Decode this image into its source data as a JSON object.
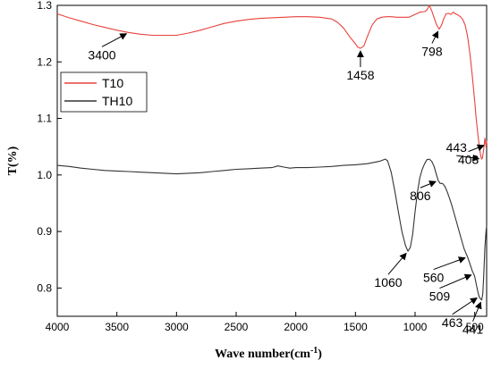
{
  "chart_data": {
    "type": "line",
    "xlabel": "Wave number(cm",
    "xlabel_sup": "-1",
    "xlabel_tail": ")",
    "ylabel": "T(%)",
    "xlim": [
      4000,
      400
    ],
    "ylim": [
      0.75,
      1.3
    ],
    "x_reversed": true,
    "grid": false,
    "legend_position": "middle-left",
    "xticks": [
      4000,
      3500,
      3000,
      2500,
      2000,
      1500,
      1000,
      500
    ],
    "yticks": [
      0.8,
      0.9,
      1.0,
      1.1,
      1.2,
      1.3
    ],
    "xtick_labels": [
      "4000",
      "3500",
      "3000",
      "2500",
      "2000",
      "1500",
      "1000",
      "500"
    ],
    "ytick_labels": [
      "0.8",
      "0.9",
      "1.0",
      "1.1",
      "1.2",
      "1.3"
    ],
    "series": [
      {
        "name": "T10",
        "color": "#e8413c",
        "x": [
          4000,
          3900,
          3800,
          3700,
          3600,
          3500,
          3400,
          3300,
          3200,
          3100,
          3000,
          2900,
          2800,
          2700,
          2600,
          2500,
          2400,
          2300,
          2200,
          2100,
          2000,
          1900,
          1800,
          1700,
          1650,
          1600,
          1550,
          1500,
          1480,
          1458,
          1430,
          1400,
          1360,
          1320,
          1280,
          1240,
          1200,
          1150,
          1100,
          1050,
          1000,
          960,
          920,
          900,
          880,
          860,
          840,
          820,
          798,
          780,
          760,
          740,
          720,
          700,
          680,
          660,
          640,
          620,
          600,
          580,
          560,
          540,
          520,
          500,
          490,
          480,
          470,
          460,
          450,
          443,
          435,
          425,
          415,
          405,
          400
        ],
        "y": [
          1.285,
          1.278,
          1.272,
          1.266,
          1.261,
          1.256,
          1.252,
          1.249,
          1.247,
          1.247,
          1.247,
          1.251,
          1.256,
          1.262,
          1.268,
          1.272,
          1.275,
          1.277,
          1.278,
          1.279,
          1.28,
          1.28,
          1.279,
          1.276,
          1.27,
          1.26,
          1.245,
          1.232,
          1.226,
          1.224,
          1.228,
          1.245,
          1.265,
          1.276,
          1.279,
          1.28,
          1.28,
          1.279,
          1.279,
          1.279,
          1.284,
          1.288,
          1.289,
          1.292,
          1.3,
          1.29,
          1.278,
          1.266,
          1.258,
          1.264,
          1.276,
          1.285,
          1.286,
          1.284,
          1.288,
          1.285,
          1.283,
          1.28,
          1.275,
          1.265,
          1.245,
          1.215,
          1.175,
          1.13,
          1.105,
          1.085,
          1.065,
          1.048,
          1.035,
          1.028,
          1.03,
          1.045,
          1.065,
          1.05,
          1.06
        ]
      },
      {
        "name": "TH10",
        "color": "#333333",
        "x": [
          4000,
          3900,
          3800,
          3700,
          3600,
          3500,
          3400,
          3300,
          3200,
          3100,
          3000,
          2900,
          2800,
          2700,
          2600,
          2500,
          2400,
          2300,
          2200,
          2150,
          2100,
          2050,
          2000,
          1900,
          1800,
          1700,
          1600,
          1500,
          1400,
          1300,
          1250,
          1230,
          1200,
          1170,
          1140,
          1110,
          1080,
          1060,
          1040,
          1020,
          1000,
          980,
          960,
          940,
          920,
          900,
          880,
          860,
          840,
          820,
          806,
          790,
          770,
          750,
          730,
          710,
          690,
          670,
          650,
          630,
          610,
          590,
          570,
          560,
          540,
          520,
          509,
          500,
          490,
          480,
          470,
          463,
          455,
          448,
          441,
          432,
          425,
          415,
          405,
          400
        ],
        "y": [
          1.017,
          1.015,
          1.012,
          1.01,
          1.008,
          1.007,
          1.006,
          1.005,
          1.004,
          1.003,
          1.002,
          1.003,
          1.004,
          1.006,
          1.008,
          1.01,
          1.011,
          1.012,
          1.013,
          1.016,
          1.014,
          1.012,
          1.013,
          1.013,
          1.014,
          1.015,
          1.017,
          1.018,
          1.02,
          1.024,
          1.028,
          1.025,
          1.005,
          0.972,
          0.935,
          0.9,
          0.875,
          0.865,
          0.872,
          0.895,
          0.935,
          0.97,
          0.995,
          1.01,
          1.02,
          1.027,
          1.028,
          1.024,
          1.015,
          1.0,
          0.99,
          0.985,
          0.985,
          0.98,
          0.97,
          0.958,
          0.945,
          0.93,
          0.915,
          0.9,
          0.885,
          0.87,
          0.86,
          0.855,
          0.843,
          0.83,
          0.825,
          0.82,
          0.81,
          0.8,
          0.79,
          0.785,
          0.782,
          0.78,
          0.779,
          0.79,
          0.82,
          0.87,
          0.9,
          0.91
        ]
      }
    ],
    "annotations": [
      {
        "text": "3400",
        "x": 3400,
        "series": "T10"
      },
      {
        "text": "1458",
        "x": 1458,
        "series": "T10"
      },
      {
        "text": "798",
        "x": 798,
        "series": "T10"
      },
      {
        "text": "443",
        "x": 443,
        "series": "T10"
      },
      {
        "text": "403",
        "x": 403,
        "series": "T10"
      },
      {
        "text": "1060",
        "x": 1060,
        "series": "TH10"
      },
      {
        "text": "806",
        "x": 806,
        "series": "TH10"
      },
      {
        "text": "560",
        "x": 560,
        "series": "TH10"
      },
      {
        "text": "509",
        "x": 509,
        "series": "TH10"
      },
      {
        "text": "463",
        "x": 463,
        "series": "TH10"
      },
      {
        "text": "441",
        "x": 441,
        "series": "TH10"
      }
    ]
  }
}
